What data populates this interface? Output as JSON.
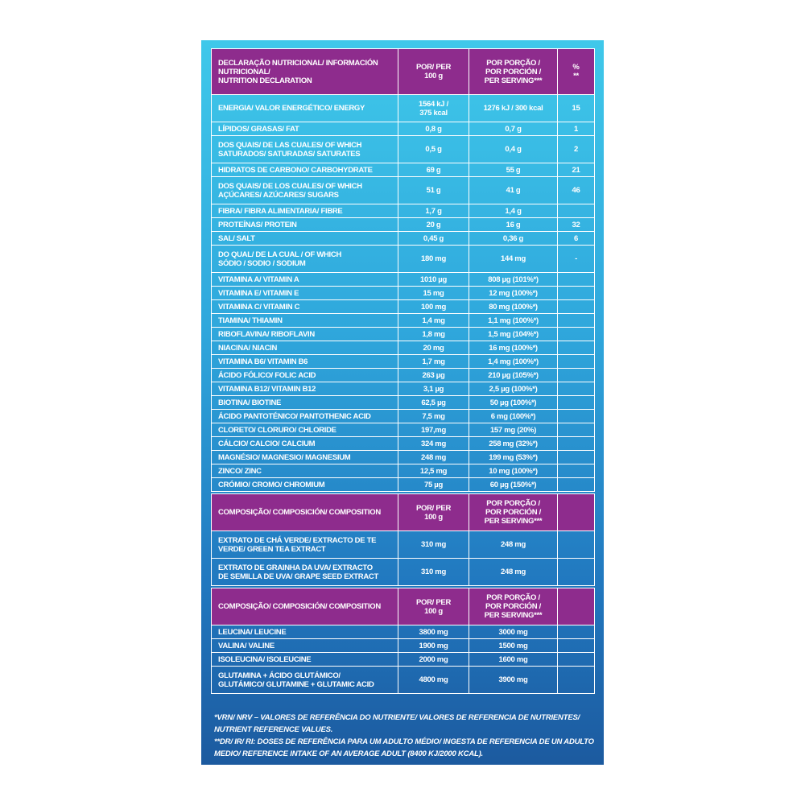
{
  "tables": [
    {
      "header": [
        "DECLARAÇÃO NUTRICIONAL/ INFORMACIÓN\nNUTRICIONAL/\nNUTRITION DECLARATION",
        "POR/ PER\n100 g",
        "POR PORÇÃO /\nPOR PORCIÓN /\nPER SERVING***",
        "%\n**"
      ],
      "rows": [
        [
          "ENERGIA/ VALOR ENERGÉTICO/ ENERGY",
          "1564 kJ /\n375 kcal",
          "1276 kJ / 300 kcal",
          "15"
        ],
        [
          "LÍPIDOS/ GRASAS/ FAT",
          "0,8 g",
          "0,7 g",
          "1"
        ],
        [
          "DOS QUAIS/ DE LAS CUALES/ OF WHICH\nSATURADOS/ SATURADAS/ SATURATES",
          "0,5 g",
          "0,4 g",
          "2"
        ],
        [
          "HIDRATOS DE CARBONO/ CARBOHYDRATE",
          "69 g",
          "55 g",
          "21"
        ],
        [
          "DOS QUAIS/ DE LOS CUALES/ OF WHICH\nAÇÚCARES/ AZÚCARES/ SUGARS",
          "51 g",
          "41 g",
          "46"
        ],
        [
          "FIBRA/ FIBRA ALIMENTARIA/ FIBRE",
          "1,7 g",
          "1,4 g",
          null
        ],
        [
          "PROTEÍNAS/ PROTEIN",
          "20 g",
          "16 g",
          "32"
        ],
        [
          "SAL/ SALT",
          "0,45 g",
          "0,36 g",
          "6"
        ],
        [
          "DO QUAL/ DE LA CUAL / OF WHICH\nSÓDIO / SODIO / SODIUM",
          "180 mg",
          "144 mg",
          "-"
        ],
        [
          "VITAMINA A/ VITAMIN A",
          "1010 µg",
          "808 µg (101%*)",
          null
        ],
        [
          "VITAMINA E/ VITAMIN E",
          "15 mg",
          "12 mg (100%*)",
          null
        ],
        [
          "VITAMINA C/ VITAMIN C",
          "100 mg",
          "80 mg (100%*)",
          null
        ],
        [
          "TIAMINA/ THIAMIN",
          "1,4 mg",
          "1,1 mg (100%*)",
          null
        ],
        [
          "RIBOFLAVINA/ RIBOFLAVIN",
          "1,8 mg",
          "1,5 mg (104%*)",
          null
        ],
        [
          "NIACINA/ NIACIN",
          "20 mg",
          "16 mg (100%*)",
          null
        ],
        [
          "VITAMINA B6/ VITAMIN B6",
          "1,7 mg",
          "1,4 mg (100%*)",
          null
        ],
        [
          "ÁCIDO FÓLICO/ FOLIC ACID",
          "263 µg",
          "210 µg (105%*)",
          null
        ],
        [
          "VITAMINA B12/ VITAMIN B12",
          "3,1 µg",
          "2,5 µg (100%*)",
          null
        ],
        [
          "BIOTINA/ BIOTINE",
          "62,5 µg",
          "50 µg (100%*)",
          null
        ],
        [
          "ÁCIDO PANTOTÉNICO/ PANTOTHENIC ACID",
          "7,5 mg",
          "6 mg (100%*)",
          null
        ],
        [
          "CLORETO/ CLORURO/ CHLORIDE",
          "197,mg",
          "157 mg (20%)",
          null
        ],
        [
          "CÁLCIO/ CALCIO/ CALCIUM",
          "324 mg",
          "258 mg (32%*)",
          null
        ],
        [
          "MAGNÉSIO/ MAGNESIO/ MAGNESIUM",
          "248 mg",
          "199 mg (53%*)",
          null
        ],
        [
          "ZINCO/ ZINC",
          "12,5 mg",
          "10 mg (100%*)",
          null
        ],
        [
          "CRÓMIO/ CROMO/ CHROMIUM",
          "75 µg",
          "60 µg (150%*)",
          null
        ]
      ]
    },
    {
      "header": [
        "COMPOSIÇÃO/ COMPOSICIÓN/ COMPOSITION",
        "POR/ PER\n100 g",
        "POR PORÇÃO /\nPOR PORCIÓN /\nPER SERVING***",
        null
      ],
      "rows": [
        [
          "EXTRATO DE CHÁ VERDE/ EXTRACTO DE TE\nVERDE/ GREEN TEA EXTRACT",
          "310 mg",
          "248 mg",
          null
        ],
        [
          "EXTRATO DE GRAINHA DA UVA/ EXTRACTO\nDE SEMILLA DE UVA/ GRAPE SEED EXTRACT",
          "310 mg",
          "248 mg",
          null
        ]
      ]
    },
    {
      "header": [
        "COMPOSIÇÃO/ COMPOSICIÓN/ COMPOSITION",
        "POR/ PER\n100 g",
        "POR PORÇÃO /\nPOR PORCIÓN /\nPER SERVING***",
        null
      ],
      "rows": [
        [
          "LEUCINA/ LEUCINE",
          "3800 mg",
          "3000 mg",
          null
        ],
        [
          "VALINA/ VALINE",
          "1900 mg",
          "1500 mg",
          null
        ],
        [
          "ISOLEUCINA/ ISOLEUCINE",
          "2000 mg",
          "1600 mg",
          null
        ],
        [
          "GLUTAMINA + ÁCIDO GLUTÁMICO/\nGLUTÁMICO/ GLUTAMINE + GLUTAMIC ACID",
          "4800 mg",
          "3900 mg",
          null
        ]
      ]
    }
  ],
  "footnotes": [
    "*VRN/ NRV – VALORES DE REFERÊNCIA DO NUTRIENTE/ VALORES DE REFERENCIA DE NUTRIENTES/ NUTRIENT REFERENCE VALUES.",
    "**DR/ IR/ RI: DOSES DE REFERÊNCIA PARA UM ADULTO MÉDIO/ INGESTA DE REFERENCIA DE UN ADULTO MEDIO/ REFERENCE INTAKE OF AN AVERAGE ADULT (8400 KJ/2000 KCAL)."
  ]
}
